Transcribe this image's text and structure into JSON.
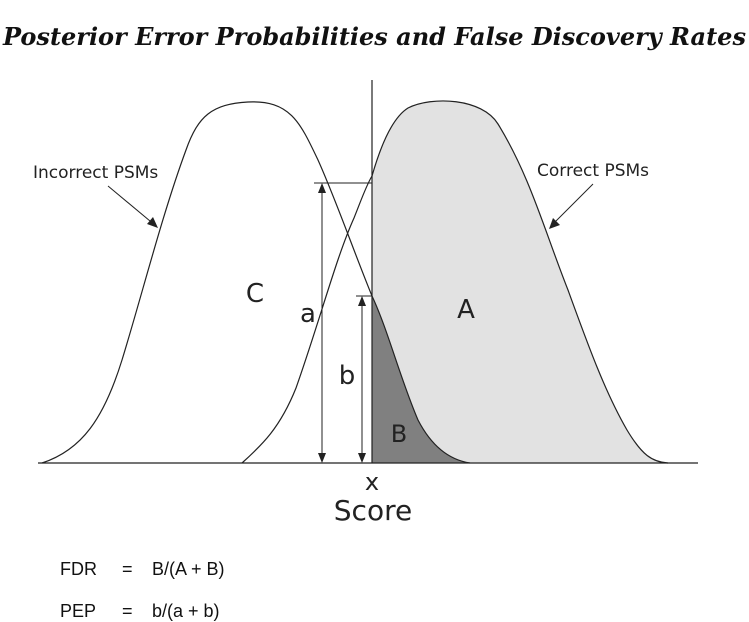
{
  "title": "Posterior Error Probabilities and False Discovery Rates",
  "curves": {
    "incorrect_label": "Incorrect PSMs",
    "correct_label": "Correct PSMs"
  },
  "regions": {
    "A": "A",
    "B": "B",
    "C": "C"
  },
  "heights": {
    "a": "a",
    "b": "b"
  },
  "axis": {
    "threshold_label": "x",
    "label": "Score"
  },
  "formulas": [
    {
      "name": "FDR",
      "eq": "=",
      "expr": "B/(A + B)"
    },
    {
      "name": "PEP",
      "eq": "=",
      "expr": "b/(a + b)"
    }
  ],
  "colors": {
    "correct_fill": "#e2e2e2",
    "region_b_fill": "#808080",
    "line": "#222222"
  }
}
